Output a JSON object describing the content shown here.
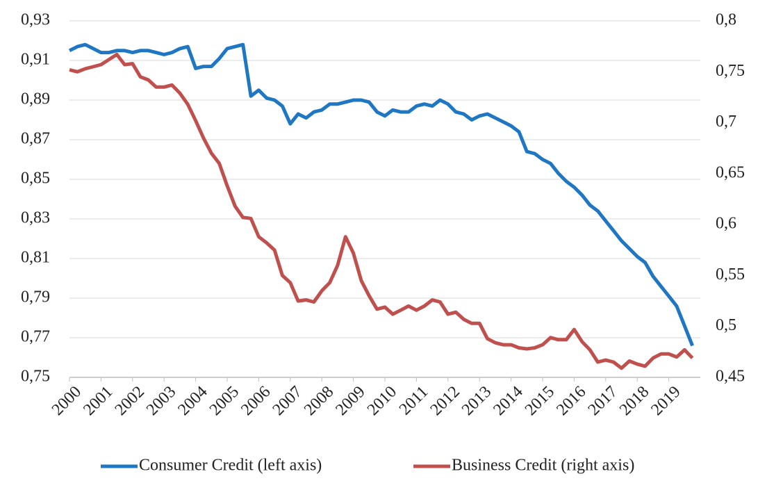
{
  "chart_data": {
    "type": "line",
    "categories": [
      "2000",
      null,
      null,
      null,
      "2001",
      null,
      null,
      null,
      "2002",
      null,
      null,
      null,
      "2003",
      null,
      null,
      null,
      "2004",
      null,
      null,
      null,
      "2005",
      null,
      null,
      null,
      "2006",
      null,
      null,
      null,
      "2007",
      null,
      null,
      null,
      "2008",
      null,
      null,
      null,
      "2009",
      null,
      null,
      null,
      "2010",
      null,
      null,
      null,
      "2011",
      null,
      null,
      null,
      "2012",
      null,
      null,
      null,
      "2013",
      null,
      null,
      null,
      "2014",
      null,
      null,
      null,
      "2015",
      null,
      null,
      null,
      "2016",
      null,
      null,
      null,
      "2017",
      null,
      null,
      null,
      "2018",
      null,
      null,
      null,
      "2019",
      null,
      null,
      null
    ],
    "series": [
      {
        "name": "Consumer Credit (left axis)",
        "color": "#1f77c4",
        "axis": "y",
        "values": [
          0.915,
          0.917,
          0.918,
          0.916,
          0.914,
          0.914,
          0.915,
          0.915,
          0.914,
          0.915,
          0.915,
          0.914,
          0.913,
          0.914,
          0.916,
          0.917,
          0.906,
          0.907,
          0.907,
          0.911,
          0.916,
          0.917,
          0.918,
          0.892,
          0.895,
          0.891,
          0.89,
          0.887,
          0.878,
          0.883,
          0.881,
          0.884,
          0.885,
          0.888,
          0.888,
          0.889,
          0.89,
          0.89,
          0.889,
          0.884,
          0.882,
          0.885,
          0.884,
          0.884,
          0.887,
          0.888,
          0.887,
          0.89,
          0.888,
          0.884,
          0.883,
          0.88,
          0.882,
          0.883,
          0.881,
          0.879,
          0.877,
          0.874,
          0.864,
          0.863,
          0.86,
          0.858,
          0.853,
          0.849,
          0.846,
          0.842,
          0.837,
          0.834,
          0.829,
          0.824,
          0.819,
          0.815,
          0.811,
          0.808,
          0.801,
          0.796,
          0.791,
          0.786,
          0.776,
          0.766
        ]
      },
      {
        "name": "Business Credit (right axis)",
        "color": "#c0504d",
        "axis": "y2",
        "values": [
          0.752,
          0.75,
          0.753,
          0.755,
          0.757,
          0.762,
          0.767,
          0.757,
          0.758,
          0.745,
          0.742,
          0.735,
          0.735,
          0.737,
          0.729,
          0.718,
          0.702,
          0.685,
          0.67,
          0.66,
          0.638,
          0.618,
          0.607,
          0.606,
          0.588,
          0.582,
          0.575,
          0.55,
          0.543,
          0.525,
          0.526,
          0.524,
          0.535,
          0.543,
          0.56,
          0.588,
          0.572,
          0.545,
          0.53,
          0.517,
          0.519,
          0.512,
          0.516,
          0.52,
          0.516,
          0.52,
          0.526,
          0.524,
          0.512,
          0.514,
          0.507,
          0.503,
          0.503,
          0.488,
          0.484,
          0.482,
          0.482,
          0.479,
          0.478,
          0.479,
          0.482,
          0.489,
          0.487,
          0.487,
          0.497,
          0.485,
          0.477,
          0.465,
          0.467,
          0.465,
          0.459,
          0.466,
          0.463,
          0.461,
          0.469,
          0.473,
          0.473,
          0.47,
          0.477,
          0.469
        ]
      }
    ],
    "ylim": [
      0.75,
      0.93
    ],
    "yticks": [
      {
        "value": 0.75,
        "label": "0,75"
      },
      {
        "value": 0.77,
        "label": "0,77"
      },
      {
        "value": 0.79,
        "label": "0,79"
      },
      {
        "value": 0.81,
        "label": "0,81"
      },
      {
        "value": 0.83,
        "label": "0,83"
      },
      {
        "value": 0.85,
        "label": "0,85"
      },
      {
        "value": 0.87,
        "label": "0,87"
      },
      {
        "value": 0.89,
        "label": "0,89"
      },
      {
        "value": 0.91,
        "label": "0,91"
      },
      {
        "value": 0.93,
        "label": "0,93"
      }
    ],
    "y2lim": [
      0.45,
      0.8
    ],
    "y2ticks": [
      {
        "value": 0.45,
        "label": "0,45"
      },
      {
        "value": 0.5,
        "label": "0,5"
      },
      {
        "value": 0.55,
        "label": "0,55"
      },
      {
        "value": 0.6,
        "label": "0,6"
      },
      {
        "value": 0.65,
        "label": "0,65"
      },
      {
        "value": 0.7,
        "label": "0,7"
      },
      {
        "value": 0.75,
        "label": "0,75"
      },
      {
        "value": 0.8,
        "label": "0,8"
      }
    ],
    "grid": true,
    "legend": "bottom"
  }
}
